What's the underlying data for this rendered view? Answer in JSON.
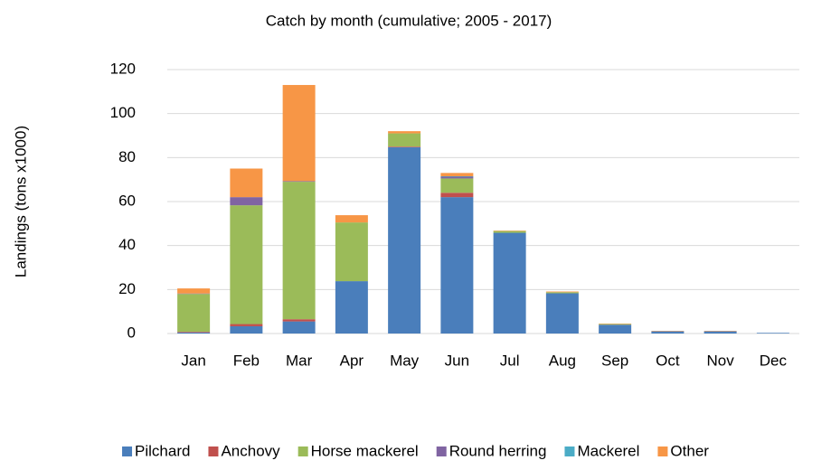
{
  "chart_data": {
    "type": "stacked_bar",
    "title": "Catch by month (cumulative; 2005 - 2017)",
    "y_label": "Landings (tons x1000)",
    "categories": [
      "Jan",
      "Feb",
      "Mar",
      "Apr",
      "May",
      "Jun",
      "Jul",
      "Aug",
      "Sep",
      "Oct",
      "Nov",
      "Dec"
    ],
    "series": [
      {
        "name": "Pilchard",
        "color": "#4a7ebb",
        "values": [
          0.5,
          3.3,
          5.5,
          23.8,
          84.7,
          62,
          45.8,
          18.3,
          4,
          1,
          1,
          0.3
        ]
      },
      {
        "name": "Anchovy",
        "color": "#c0504d",
        "values": [
          0.3,
          1,
          1,
          0,
          0.3,
          2,
          0,
          0,
          0,
          0,
          0,
          0
        ]
      },
      {
        "name": "Horse mackerel",
        "color": "#9bbb59",
        "values": [
          17.2,
          54,
          62.5,
          26.7,
          6,
          6.5,
          0.8,
          0.5,
          0.3,
          0,
          0,
          0
        ]
      },
      {
        "name": "Round herring",
        "color": "#8064a2",
        "values": [
          0.2,
          3.7,
          0.3,
          0,
          0,
          0.8,
          0,
          0,
          0,
          0,
          0,
          0
        ]
      },
      {
        "name": "Mackerel",
        "color": "#4bacc6",
        "values": [
          0,
          0,
          0,
          0,
          0,
          0.2,
          0,
          0,
          0,
          0,
          0,
          0
        ]
      },
      {
        "name": "Other",
        "color": "#f79646",
        "values": [
          2.3,
          13,
          43.7,
          3.3,
          1,
          1.5,
          0.2,
          0.3,
          0.2,
          0.2,
          0.2,
          0
        ]
      }
    ],
    "ylim": [
      0,
      120
    ],
    "yticks": [
      0,
      20,
      40,
      60,
      80,
      100,
      120
    ],
    "grid": true,
    "legend": "bottom"
  }
}
